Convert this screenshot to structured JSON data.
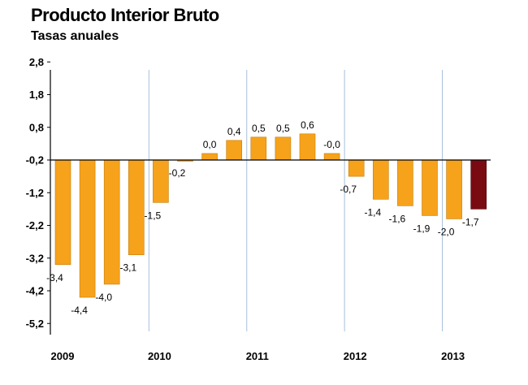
{
  "chart_data": {
    "type": "bar",
    "title": "Producto Interior Bruto",
    "subtitle": "Tasas anuales",
    "xlabel": "",
    "ylabel": "",
    "ylim": [
      -5.2,
      2.8
    ],
    "yticks": [
      "2,8",
      "1,8",
      "0,8",
      "-0,2",
      "-1,2",
      "-2,2",
      "-3,2",
      "-4,2",
      "-5,2"
    ],
    "ytick_values": [
      2.8,
      1.8,
      0.8,
      -0.2,
      -1.2,
      -2.2,
      -3.2,
      -4.2,
      -5.2
    ],
    "year_labels": [
      "2009",
      "2010",
      "2011",
      "2012",
      "2013"
    ],
    "grid": "vertical lines at year boundaries",
    "colors": {
      "bar": "#F7A21B",
      "highlight": "#7A0A12",
      "grid": "#A8C0DC",
      "axis": "#000000"
    },
    "values": [
      -3.4,
      -4.4,
      -4.0,
      -3.1,
      -1.5,
      -0.2,
      0.0,
      0.4,
      0.5,
      0.5,
      0.6,
      -0.0,
      -0.7,
      -1.4,
      -1.6,
      -1.9,
      -2.0,
      -1.7
    ],
    "labels": [
      "-3,4",
      "-4,4",
      "-4,0",
      "-3,1",
      "-1,5",
      "-0,2",
      "0,0",
      "0,4",
      "0,5",
      "0,5",
      "0,6",
      "-0,0",
      "-0,7",
      "-1,4",
      "-1,6",
      "-1,9",
      "-2,0",
      "-1,7"
    ],
    "highlight_last": true
  }
}
